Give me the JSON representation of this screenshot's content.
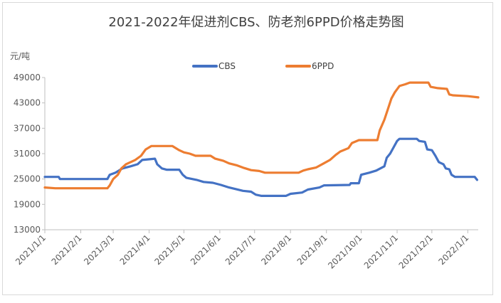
{
  "chart_data": {
    "type": "line",
    "title": "2021-2022年促进剂CBS、防老剂6PPD价格走势图",
    "ylabel": "元/吨",
    "xlabel": "",
    "ylim": [
      13000,
      49000
    ],
    "yticks": [
      "49000",
      "43000",
      "37000",
      "31000",
      "25000",
      "19000",
      "13000"
    ],
    "xlim": [
      "2021-01-01",
      "2022-01-10"
    ],
    "x_tick_labels": [
      "2021/1/1",
      "2021/2/1",
      "2021/3/1",
      "2021/4/1",
      "2021/5/1",
      "2021/6/1",
      "2021/7/1",
      "2021/8/1",
      "2021/9/1",
      "2021/10/1",
      "2021/11/1",
      "2021/12/1",
      "2022/1/1"
    ],
    "x_tick_dates": [
      "2021-01-01",
      "2021-02-01",
      "2021-03-01",
      "2021-04-01",
      "2021-05-01",
      "2021-06-01",
      "2021-07-01",
      "2021-08-01",
      "2021-09-01",
      "2021-10-01",
      "2021-11-01",
      "2021-12-01",
      "2022-01-01"
    ],
    "grid": false,
    "legend_position": "top",
    "series": [
      {
        "name": "CBS",
        "color": "#4472C4",
        "points": [
          [
            "2021-01-01",
            25500
          ],
          [
            "2021-01-13",
            25500
          ],
          [
            "2021-01-14",
            25000
          ],
          [
            "2021-02-24",
            25000
          ],
          [
            "2021-02-26",
            26000
          ],
          [
            "2021-03-03",
            26500
          ],
          [
            "2021-03-09",
            27500
          ],
          [
            "2021-03-16",
            28000
          ],
          [
            "2021-03-22",
            28500
          ],
          [
            "2021-03-26",
            29500
          ],
          [
            "2021-04-06",
            29800
          ],
          [
            "2021-04-08",
            28500
          ],
          [
            "2021-04-12",
            27500
          ],
          [
            "2021-04-16",
            27200
          ],
          [
            "2021-04-27",
            27200
          ],
          [
            "2021-04-30",
            26000
          ],
          [
            "2021-05-03",
            25300
          ],
          [
            "2021-05-12",
            24800
          ],
          [
            "2021-05-18",
            24300
          ],
          [
            "2021-05-26",
            24100
          ],
          [
            "2021-06-02",
            23600
          ],
          [
            "2021-06-09",
            23000
          ],
          [
            "2021-06-15",
            22600
          ],
          [
            "2021-06-21",
            22200
          ],
          [
            "2021-06-28",
            22000
          ],
          [
            "2021-07-02",
            21300
          ],
          [
            "2021-07-07",
            21000
          ],
          [
            "2021-07-28",
            21000
          ],
          [
            "2021-08-01",
            21500
          ],
          [
            "2021-08-11",
            21800
          ],
          [
            "2021-08-16",
            22500
          ],
          [
            "2021-08-26",
            23000
          ],
          [
            "2021-08-30",
            23500
          ],
          [
            "2021-09-21",
            23600
          ],
          [
            "2021-09-22",
            24000
          ],
          [
            "2021-09-29",
            24000
          ],
          [
            "2021-10-01",
            26000
          ],
          [
            "2021-10-08",
            26500
          ],
          [
            "2021-10-14",
            27000
          ],
          [
            "2021-10-21",
            28000
          ],
          [
            "2021-10-23",
            30000
          ],
          [
            "2021-10-26",
            31000
          ],
          [
            "2021-10-29",
            32500
          ],
          [
            "2021-11-01",
            34000
          ],
          [
            "2021-11-03",
            34500
          ],
          [
            "2021-11-18",
            34500
          ],
          [
            "2021-11-20",
            34000
          ],
          [
            "2021-11-25",
            33800
          ],
          [
            "2021-11-27",
            32000
          ],
          [
            "2021-12-01",
            31800
          ],
          [
            "2021-12-04",
            30500
          ],
          [
            "2021-12-07",
            29000
          ],
          [
            "2021-12-11",
            28500
          ],
          [
            "2021-12-13",
            27500
          ],
          [
            "2021-12-16",
            27300
          ],
          [
            "2021-12-18",
            26000
          ],
          [
            "2021-12-21",
            25500
          ],
          [
            "2022-01-07",
            25500
          ],
          [
            "2022-01-09",
            24800
          ]
        ]
      },
      {
        "name": "6PPD",
        "color": "#ED7D31",
        "points": [
          [
            "2021-01-01",
            23000
          ],
          [
            "2021-01-10",
            22800
          ],
          [
            "2021-02-24",
            22800
          ],
          [
            "2021-02-26",
            23500
          ],
          [
            "2021-03-01",
            25000
          ],
          [
            "2021-03-05",
            26000
          ],
          [
            "2021-03-08",
            27500
          ],
          [
            "2021-03-12",
            28500
          ],
          [
            "2021-03-16",
            29000
          ],
          [
            "2021-03-20",
            29500
          ],
          [
            "2021-03-25",
            30500
          ],
          [
            "2021-03-29",
            32000
          ],
          [
            "2021-04-03",
            32800
          ],
          [
            "2021-04-21",
            32800
          ],
          [
            "2021-04-24",
            32300
          ],
          [
            "2021-04-27",
            31800
          ],
          [
            "2021-05-01",
            31300
          ],
          [
            "2021-05-06",
            31000
          ],
          [
            "2021-05-11",
            30500
          ],
          [
            "2021-05-24",
            30500
          ],
          [
            "2021-05-28",
            29800
          ],
          [
            "2021-06-04",
            29300
          ],
          [
            "2021-06-09",
            28700
          ],
          [
            "2021-06-16",
            28200
          ],
          [
            "2021-06-22",
            27600
          ],
          [
            "2021-06-28",
            27100
          ],
          [
            "2021-07-05",
            26900
          ],
          [
            "2021-07-10",
            26500
          ],
          [
            "2021-08-08",
            26500
          ],
          [
            "2021-08-12",
            27000
          ],
          [
            "2021-08-16",
            27300
          ],
          [
            "2021-08-23",
            27700
          ],
          [
            "2021-08-29",
            28600
          ],
          [
            "2021-09-04",
            29500
          ],
          [
            "2021-09-09",
            30700
          ],
          [
            "2021-09-13",
            31500
          ],
          [
            "2021-09-20",
            32300
          ],
          [
            "2021-09-23",
            33500
          ],
          [
            "2021-09-29",
            34200
          ],
          [
            "2021-10-15",
            34200
          ],
          [
            "2021-10-17",
            36500
          ],
          [
            "2021-10-21",
            39000
          ],
          [
            "2021-10-24",
            41500
          ],
          [
            "2021-10-27",
            44000
          ],
          [
            "2021-10-30",
            45500
          ],
          [
            "2021-11-03",
            47000
          ],
          [
            "2021-11-08",
            47400
          ],
          [
            "2021-11-12",
            47800
          ],
          [
            "2021-11-28",
            47800
          ],
          [
            "2021-11-30",
            46800
          ],
          [
            "2021-12-06",
            46500
          ],
          [
            "2021-12-14",
            46300
          ],
          [
            "2021-12-16",
            45000
          ],
          [
            "2021-12-19",
            44800
          ],
          [
            "2022-01-01",
            44600
          ],
          [
            "2022-01-10",
            44300
          ]
        ]
      }
    ]
  }
}
